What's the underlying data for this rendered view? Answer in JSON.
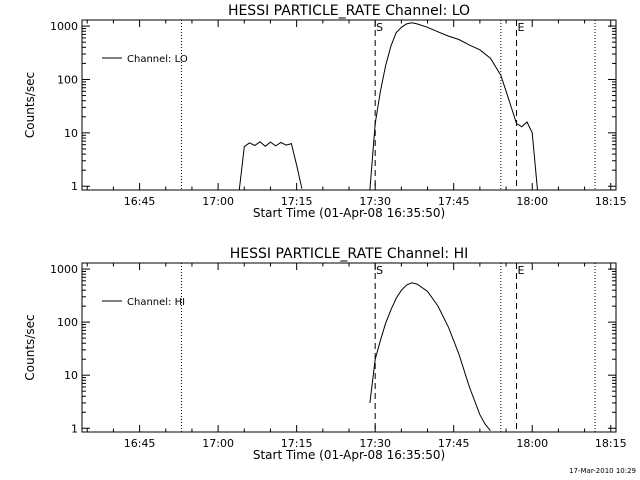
{
  "timestamp": "17-Mar-2010 10:29",
  "chart_data": [
    {
      "type": "line",
      "title": "HESSI PARTICLE_RATE Channel: LO",
      "xlabel": "Start Time (01-Apr-08 16:35:50)",
      "ylabel": "Counts/sec",
      "x_tick_labels": [
        "16:45",
        "17:00",
        "17:15",
        "17:30",
        "17:45",
        "18:00",
        "18:15"
      ],
      "y_tick_labels": [
        "1",
        "10",
        "100",
        "1000"
      ],
      "y_scale": "log",
      "xlim": [
        "16:34",
        "18:16"
      ],
      "ylim": [
        0.85,
        1300
      ],
      "legend": {
        "position": "top-left",
        "entries": [
          "Channel: LO"
        ]
      },
      "markers": [
        {
          "label": "",
          "time": "16:53",
          "style": "dotted"
        },
        {
          "label": "S",
          "time": "17:30",
          "style": "dashed"
        },
        {
          "label": "",
          "time": "17:54",
          "style": "dotted"
        },
        {
          "label": "E",
          "time": "17:57",
          "style": "dashed"
        },
        {
          "label": "",
          "time": "18:12",
          "style": "dotted"
        }
      ],
      "series": [
        {
          "name": "Channel: LO",
          "segments": [
            [
              [
                "17:04",
                0.8
              ],
              [
                "17:05",
                5.5
              ],
              [
                "17:06",
                6.5
              ],
              [
                "17:07",
                5.8
              ],
              [
                "17:08",
                6.8
              ],
              [
                "17:09",
                5.6
              ],
              [
                "17:10",
                6.7
              ],
              [
                "17:11",
                5.7
              ],
              [
                "17:12",
                6.6
              ],
              [
                "17:13",
                5.9
              ],
              [
                "17:14",
                6.3
              ],
              [
                "17:15",
                2.5
              ],
              [
                "17:16",
                0.9
              ]
            ],
            [
              [
                "17:29",
                0.85
              ],
              [
                "17:30",
                15
              ],
              [
                "17:31",
                60
              ],
              [
                "17:32",
                180
              ],
              [
                "17:33",
                420
              ],
              [
                "17:34",
                750
              ],
              [
                "17:35",
                950
              ],
              [
                "17:36",
                1100
              ],
              [
                "17:37",
                1150
              ],
              [
                "17:38",
                1100
              ],
              [
                "17:40",
                950
              ],
              [
                "17:42",
                780
              ],
              [
                "17:44",
                650
              ],
              [
                "17:46",
                560
              ],
              [
                "17:48",
                440
              ],
              [
                "17:50",
                360
              ],
              [
                "17:52",
                250
              ],
              [
                "17:54",
                120
              ],
              [
                "17:55",
                60
              ],
              [
                "17:56",
                30
              ],
              [
                "17:57",
                15
              ],
              [
                "17:58",
                13
              ],
              [
                "17:59",
                16
              ],
              [
                "18:00",
                10
              ],
              [
                "18:01",
                0.85
              ]
            ]
          ]
        }
      ]
    },
    {
      "type": "line",
      "title": "HESSI PARTICLE_RATE Channel: HI",
      "xlabel": "Start Time (01-Apr-08 16:35:50)",
      "ylabel": "Counts/sec",
      "x_tick_labels": [
        "16:45",
        "17:00",
        "17:15",
        "17:30",
        "17:45",
        "18:00",
        "18:15"
      ],
      "y_tick_labels": [
        "1",
        "10",
        "100",
        "1000"
      ],
      "y_scale": "log",
      "xlim": [
        "16:34",
        "18:16"
      ],
      "ylim": [
        0.85,
        1300
      ],
      "legend": {
        "position": "top-left",
        "entries": [
          "Channel: HI"
        ]
      },
      "markers": [
        {
          "label": "",
          "time": "16:53",
          "style": "dotted"
        },
        {
          "label": "S",
          "time": "17:30",
          "style": "dashed"
        },
        {
          "label": "",
          "time": "17:54",
          "style": "dotted"
        },
        {
          "label": "E",
          "time": "17:57",
          "style": "dashed"
        },
        {
          "label": "",
          "time": "18:12",
          "style": "dotted"
        }
      ],
      "series": [
        {
          "name": "Channel: HI",
          "segments": [
            [
              [
                "17:29",
                3
              ],
              [
                "17:30",
                20
              ],
              [
                "17:31",
                45
              ],
              [
                "17:32",
                95
              ],
              [
                "17:33",
                170
              ],
              [
                "17:34",
                280
              ],
              [
                "17:35",
                400
              ],
              [
                "17:36",
                500
              ],
              [
                "17:37",
                550
              ],
              [
                "17:38",
                520
              ],
              [
                "17:40",
                380
              ],
              [
                "17:42",
                200
              ],
              [
                "17:44",
                80
              ],
              [
                "17:46",
                25
              ],
              [
                "17:48",
                6
              ],
              [
                "17:50",
                1.8
              ],
              [
                "17:51",
                1.2
              ],
              [
                "17:52",
                0.9
              ]
            ]
          ]
        }
      ]
    }
  ]
}
